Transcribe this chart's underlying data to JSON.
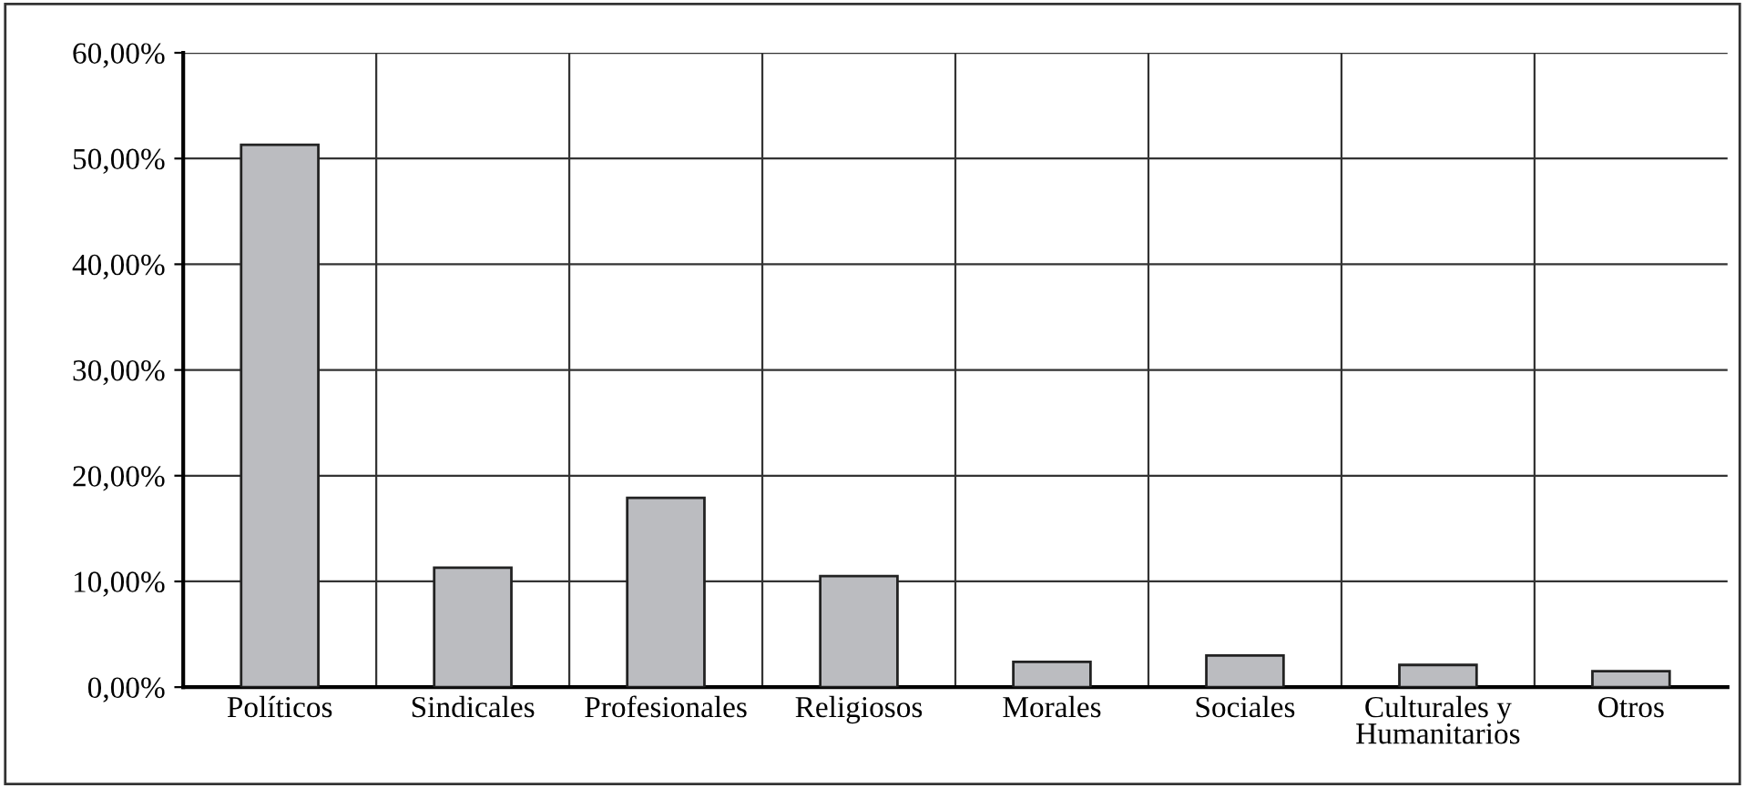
{
  "chart_data": {
    "type": "bar",
    "categories": [
      "Políticos",
      "Sindicales",
      "Profesionales",
      "Religiosos",
      "Morales",
      "Sociales",
      "Culturales y\nHumanitarios",
      "Otros"
    ],
    "values": [
      51.3,
      11.3,
      17.9,
      10.5,
      2.4,
      3.0,
      2.1,
      1.5
    ],
    "color": "#bbbcc0",
    "ylim": [
      0,
      60
    ],
    "yticks": [
      {
        "value": 0,
        "label": "0,00%"
      },
      {
        "value": 10,
        "label": "10,00%"
      },
      {
        "value": 20,
        "label": "20,00%"
      },
      {
        "value": 30,
        "label": "30,00%"
      },
      {
        "value": 40,
        "label": "40,00%"
      },
      {
        "value": 50,
        "label": "50,00%"
      },
      {
        "value": 60,
        "label": "60,00%"
      }
    ],
    "grid": true
  }
}
